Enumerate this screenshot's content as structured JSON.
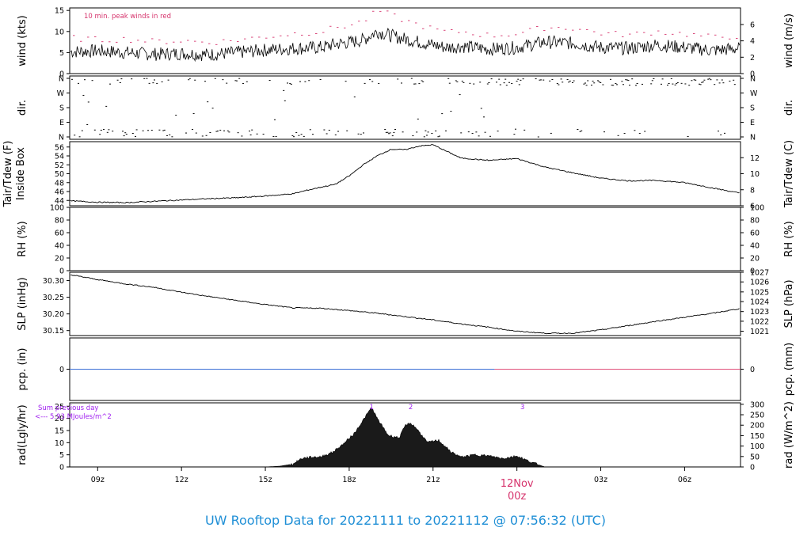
{
  "footer": {
    "title": "UW Rooftop Data for 20221111  to  20221112 @ 07:56:32  (UTC)"
  },
  "colors": {
    "line": "#000000",
    "peak": "#d6336c",
    "precip_before": "#3b6fd6",
    "precip_after": "#e0507a",
    "annotation": "#a020f0",
    "date_label": "#d6336c",
    "title": "#1f8fd6",
    "radiation_fill": "#1a1a1a"
  },
  "chart_data": [
    {
      "id": "wind",
      "type": "line",
      "ylabel": "wind (kts)",
      "ylabel_right": "wind (m/s)",
      "ylim": [
        0,
        15.6
      ],
      "yticks": [
        0,
        5,
        10,
        15
      ],
      "yticks_right": [
        {
          "label": "0",
          "v": 0
        },
        {
          "label": "2",
          "v": 3.89
        },
        {
          "label": "4",
          "v": 7.78
        },
        {
          "label": "6",
          "v": 11.66
        }
      ],
      "annotation": "10 min. peak winds in red",
      "x_hours": [
        0,
        1,
        2,
        3,
        4,
        5,
        6,
        7,
        8,
        9,
        9.5,
        10,
        10.5,
        11,
        11.5,
        12,
        12.5,
        13,
        13.5,
        14,
        15,
        16,
        17,
        18,
        19,
        20,
        21,
        22,
        23,
        24
      ],
      "series": [
        {
          "values": [
            5.2,
            5.4,
            5.0,
            4.6,
            4.8,
            4.5,
            5.0,
            5.6,
            6.0,
            6.2,
            7.0,
            7.4,
            8.0,
            10.0,
            9.0,
            8.2,
            7.5,
            6.8,
            6.2,
            6.5,
            5.8,
            6.2,
            7.5,
            7.2,
            6.2,
            6.0,
            6.8,
            6.2,
            5.5,
            6.0
          ]
        },
        {
          "name_hidden": "peak",
          "values": [
            8.5,
            8.0,
            8.2,
            7.6,
            7.8,
            7.4,
            8.0,
            8.8,
            9.5,
            10.0,
            11.0,
            11.5,
            12.5,
            15.0,
            13.8,
            12.5,
            11.5,
            10.5,
            9.8,
            10.0,
            9.0,
            9.5,
            11.0,
            10.8,
            9.6,
            9.2,
            10.0,
            9.4,
            8.6,
            9.0
          ]
        }
      ]
    },
    {
      "id": "dir",
      "type": "scatter",
      "ylabel": "dir.",
      "ylabel_right": "dir.",
      "yticks": [
        "N",
        "E",
        "S",
        "W",
        "N"
      ],
      "note": "wind direction ticks, mostly N/NNE and NW-N"
    },
    {
      "id": "temp",
      "type": "line",
      "ylabel": "Tair/Tdew (F)",
      "ylabel2": "Inside Box",
      "ylabel_right": "Tair/Tdew (C)",
      "ylim": [
        42.8,
        57.2
      ],
      "yticks": [
        44,
        46,
        48,
        50,
        52,
        54,
        56
      ],
      "yticks_right": [
        {
          "label": "6",
          "v": 42.8
        },
        {
          "label": "8",
          "v": 46.4
        },
        {
          "label": "10",
          "v": 50.0
        },
        {
          "label": "12",
          "v": 53.6
        }
      ],
      "x_hours": [
        0,
        1,
        2,
        3,
        4,
        5,
        6,
        7,
        8,
        8.5,
        9,
        9.5,
        10,
        10.5,
        11,
        11.5,
        12,
        12.5,
        13,
        13.5,
        14,
        15,
        16,
        17,
        18,
        19,
        20,
        21,
        22,
        23,
        24
      ],
      "series": [
        {
          "values": [
            43.9,
            43.6,
            43.5,
            43.8,
            44.1,
            44.4,
            44.6,
            45.0,
            45.5,
            46.3,
            47.0,
            47.6,
            49.5,
            52.0,
            54.0,
            55.5,
            55.4,
            56.2,
            56.5,
            55.0,
            53.5,
            53.0,
            53.4,
            51.5,
            50.2,
            49.0,
            48.4,
            48.5,
            48.0,
            46.8,
            45.6
          ]
        }
      ]
    },
    {
      "id": "rh",
      "type": "line",
      "ylabel": "RH (%)",
      "ylabel_right": "RH (%)",
      "ylim": [
        0,
        100
      ],
      "yticks": [
        0,
        20,
        40,
        60,
        80,
        100
      ],
      "series": []
    },
    {
      "id": "slp",
      "type": "line",
      "ylabel": "SLP (inHg)",
      "ylabel_right": "SLP (hPa)",
      "ylim": [
        30.135,
        30.325
      ],
      "yticks": [
        30.15,
        30.2,
        30.25,
        30.3
      ],
      "yticks_right": [
        {
          "label": "1021",
          "v": 30.148
        },
        {
          "label": "1022",
          "v": 30.178
        },
        {
          "label": "1023",
          "v": 30.207
        },
        {
          "label": "1024",
          "v": 30.237
        },
        {
          "label": "1025",
          "v": 30.266
        },
        {
          "label": "1026",
          "v": 30.296
        },
        {
          "label": "1027",
          "v": 30.325
        }
      ],
      "x_hours": [
        0,
        1,
        2,
        3,
        4,
        5,
        6,
        7,
        8,
        9,
        10,
        11,
        12,
        13,
        14,
        15,
        16,
        17,
        18,
        19,
        20,
        21,
        22,
        23,
        24
      ],
      "series": [
        {
          "values": [
            30.318,
            30.303,
            30.29,
            30.28,
            30.265,
            30.252,
            30.24,
            30.228,
            30.218,
            30.217,
            30.21,
            30.202,
            30.192,
            30.182,
            30.17,
            30.16,
            30.148,
            30.142,
            30.142,
            30.152,
            30.165,
            30.178,
            30.19,
            30.202,
            30.216
          ]
        }
      ]
    },
    {
      "id": "pcp",
      "type": "line",
      "ylabel": "pcp. (in)",
      "ylabel_right": "pcp. (mm)",
      "ylim": [
        -1,
        1
      ],
      "yticks": [
        0
      ],
      "yticks_right": [
        {
          "label": "0",
          "v": 0
        }
      ],
      "x_hours": [
        0,
        15.2,
        24
      ],
      "series": [
        {
          "values": [
            0,
            0,
            0
          ]
        }
      ]
    },
    {
      "id": "rad",
      "type": "area",
      "ylabel": "rad(Lgly/hr)",
      "ylabel_right": "rad (W/m^2)",
      "ylim": [
        0,
        26.4
      ],
      "yticks": [
        0,
        5,
        10,
        15,
        20,
        25
      ],
      "yticks_right": [
        {
          "label": "0",
          "v": 0
        },
        {
          "label": "50",
          "v": 4.3
        },
        {
          "label": "100",
          "v": 8.6
        },
        {
          "label": "150",
          "v": 12.9
        },
        {
          "label": "200",
          "v": 17.2
        },
        {
          "label": "250",
          "v": 21.5
        },
        {
          "label": "300",
          "v": 25.8
        }
      ],
      "sum_label_1": "Sum previous day",
      "sum_label_2": "<--- 5.93 MJoules/m^2",
      "markers": [
        {
          "label": "1",
          "x": 10.8
        },
        {
          "label": "2",
          "x": 12.2
        },
        {
          "label": "3",
          "x": 16.2
        }
      ],
      "x_hours": [
        7,
        7.5,
        8,
        8.3,
        8.6,
        9,
        9.4,
        9.8,
        10.2,
        10.6,
        10.8,
        11.0,
        11.4,
        11.8,
        12.0,
        12.2,
        12.4,
        12.8,
        13.2,
        13.6,
        14.0,
        14.5,
        15.0,
        15.5,
        16.0,
        16.5,
        17.0
      ],
      "series": [
        {
          "values": [
            0,
            0.3,
            1.2,
            3.5,
            4.0,
            4.2,
            6.0,
            9.5,
            14.0,
            21.0,
            24.5,
            20.0,
            13.0,
            12.0,
            17.0,
            18.0,
            16.0,
            10.0,
            11.0,
            6.5,
            4.0,
            5.0,
            4.5,
            3.5,
            4.5,
            2.0,
            0
          ]
        }
      ]
    }
  ],
  "x_axis": {
    "xlim_hours": [
      0,
      24
    ],
    "ticks": [
      {
        "label": "09z",
        "h": 1
      },
      {
        "label": "12z",
        "h": 4
      },
      {
        "label": "15z",
        "h": 7
      },
      {
        "label": "18z",
        "h": 10
      },
      {
        "label": "21z",
        "h": 13
      },
      {
        "label": "03z",
        "h": 19
      },
      {
        "label": "06z",
        "h": 22
      }
    ],
    "date_label_1": "12Nov",
    "date_label_2": "00z",
    "date_hour": 16
  }
}
